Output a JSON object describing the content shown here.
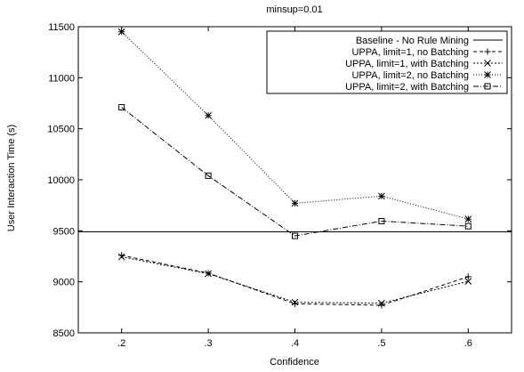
{
  "chart_data": {
    "type": "line",
    "title": "minsup=0.01",
    "xlabel": "Confidence",
    "ylabel": "User Interaction Time (s)",
    "x": [
      0.2,
      0.3,
      0.4,
      0.5,
      0.6
    ],
    "x_tick_labels": [
      ".2",
      ".3",
      ".4",
      ".5",
      ".6"
    ],
    "xlim": [
      0.15,
      0.65
    ],
    "ylim": [
      8500,
      11500
    ],
    "y_ticks": [
      8500,
      9000,
      9500,
      10000,
      10500,
      11000,
      11500
    ],
    "grid": false,
    "legend_position": "top-right",
    "series": [
      {
        "name": "Baseline - No Rule Mining",
        "style": "solid",
        "marker": "none",
        "values": [
          9490,
          9490,
          9490,
          9490,
          9490
        ]
      },
      {
        "name": "UPPA, limit=1, no Batching",
        "style": "dashed",
        "marker": "plus",
        "values": [
          9260,
          9085,
          8785,
          8770,
          9050
        ]
      },
      {
        "name": "UPPA, limit=1, with Batching",
        "style": "dotted",
        "marker": "cross",
        "values": [
          9245,
          9080,
          8800,
          8790,
          9005
        ]
      },
      {
        "name": "UPPA, limit=2, no Batching",
        "style": "fine-dotted",
        "marker": "star",
        "values": [
          11450,
          10630,
          9770,
          9840,
          9615
        ]
      },
      {
        "name": "UPPA, limit=2, with Batching",
        "style": "dashdot",
        "marker": "square",
        "values": [
          10710,
          10040,
          9450,
          9595,
          9545
        ]
      }
    ]
  }
}
